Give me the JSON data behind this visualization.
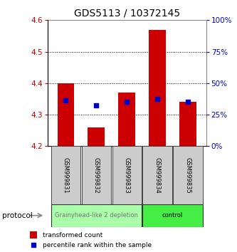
{
  "title": "GDS5113 / 10372145",
  "samples": [
    "GSM999831",
    "GSM999832",
    "GSM999833",
    "GSM999834",
    "GSM999835"
  ],
  "bar_bottom": 4.2,
  "bar_tops": [
    4.4,
    4.26,
    4.37,
    4.57,
    4.34
  ],
  "blue_values": [
    4.345,
    4.33,
    4.34,
    4.35,
    4.34
  ],
  "ylim": [
    4.2,
    4.6
  ],
  "yticks": [
    4.2,
    4.3,
    4.4,
    4.5,
    4.6
  ],
  "right_ylim": [
    0,
    100
  ],
  "right_yticks": [
    0,
    25,
    50,
    75,
    100
  ],
  "right_yticklabels": [
    "0%",
    "25%",
    "50%",
    "75%",
    "100%"
  ],
  "bar_color": "#cc0000",
  "blue_color": "#0000cc",
  "left_tick_color": "#cc0000",
  "right_tick_color": "#0000cc",
  "groups": [
    {
      "label": "Grainyhead-like 2 depletion",
      "n_samples": 3,
      "color": "#aaffaa",
      "font_color": "#777777"
    },
    {
      "label": "control",
      "n_samples": 2,
      "color": "#44ee44",
      "font_color": "#000000"
    }
  ],
  "protocol_label": "protocol",
  "legend_items": [
    {
      "color": "#cc0000",
      "label": "transformed count",
      "marker": "rect"
    },
    {
      "color": "#0000cc",
      "label": "percentile rank within the sample",
      "marker": "square"
    }
  ],
  "bg_color": "#ffffff",
  "title_fontsize": 10,
  "bar_width": 0.55,
  "blue_marker_size": 5
}
